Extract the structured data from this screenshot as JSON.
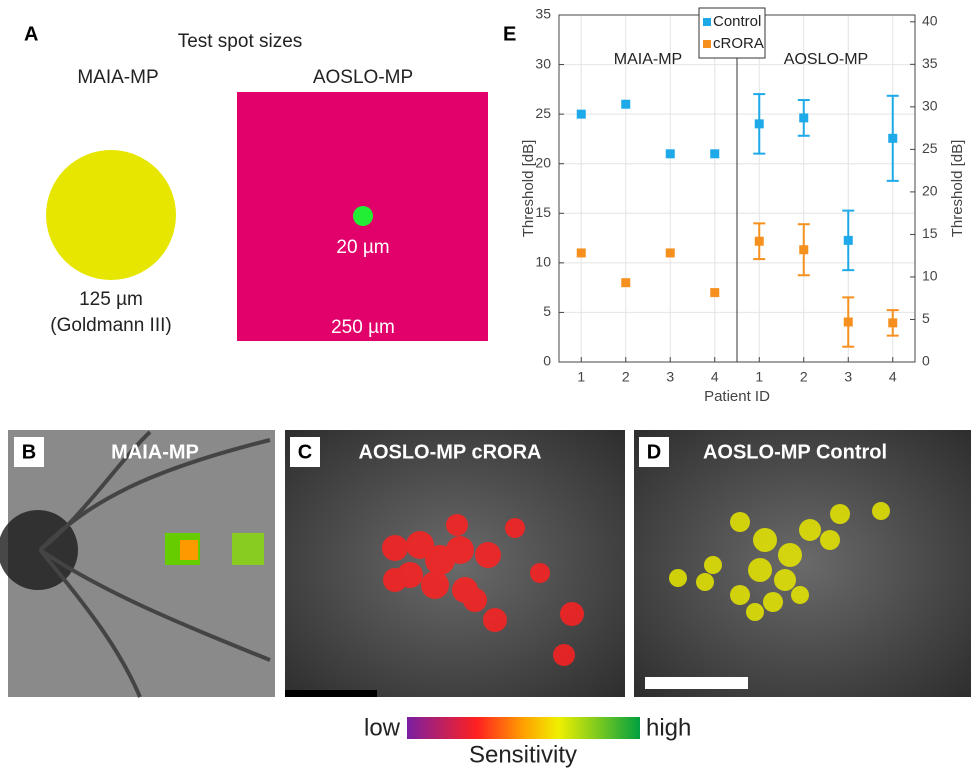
{
  "panel_a": {
    "letter": "A",
    "title": "Test spot sizes",
    "maia_label": "MAIA-MP",
    "aoslo_label": "AOSLO-MP",
    "maia_size": "125 µm",
    "maia_note": "(Goldmann III)",
    "aoslo_inner": "20 µm",
    "aoslo_outer": "250 µm"
  },
  "panel_b": {
    "letter": "B",
    "title": "MAIA-MP"
  },
  "panel_c": {
    "letter": "C",
    "title": "AOSLO-MP cRORA"
  },
  "panel_d": {
    "letter": "D",
    "title": "AOSLO-MP Control"
  },
  "colorbar": {
    "low": "low",
    "high": "high",
    "label": "Sensitivity"
  },
  "chart_data": {
    "type": "errorbar",
    "panel_label": "E",
    "groups": [
      {
        "label": "MAIA-MP",
        "axis": "y",
        "categories": [
          "1",
          "2",
          "3",
          "4"
        ]
      },
      {
        "label": "AOSLO-MP",
        "axis": "y2",
        "categories": [
          "1",
          "2",
          "3",
          "4"
        ]
      }
    ],
    "series": [
      {
        "name": "Control",
        "color": "#1ea9e8",
        "values": [
          25,
          26,
          21,
          21,
          28,
          28.7,
          14.3,
          26.3
        ],
        "errors": [
          null,
          null,
          null,
          null,
          3.5,
          2.1,
          3.5,
          5
        ]
      },
      {
        "name": "cRORA",
        "color": "#f5901e",
        "values": [
          11,
          8,
          11,
          7,
          14.2,
          13.2,
          4.7,
          4.6
        ],
        "errors": [
          null,
          null,
          null,
          null,
          2.1,
          3,
          2.9,
          1.5
        ]
      }
    ],
    "xlabel": "Patient ID",
    "ylabel": "Threshold [dB]",
    "y2label": "Threshold [dB]",
    "ylim": [
      0,
      35
    ],
    "yticks": [
      0,
      5,
      10,
      15,
      20,
      25,
      30,
      35
    ],
    "y2lim": [
      0,
      40.8
    ],
    "y2ticks": [
      0,
      5,
      10,
      15,
      20,
      25,
      30,
      35,
      40
    ],
    "grid": true,
    "legend": "top-center"
  }
}
